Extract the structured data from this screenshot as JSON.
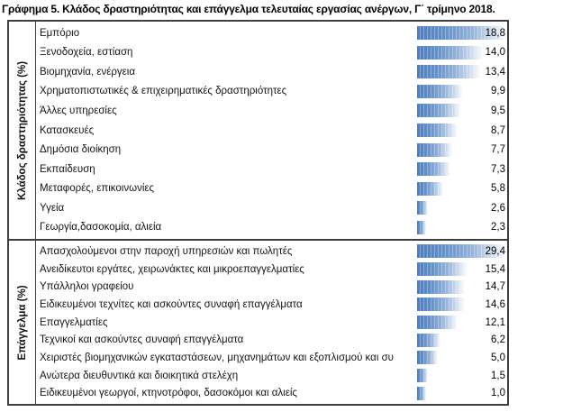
{
  "title": "Γράφημα 5. Κλάδος δραστηριότητας και επάγγελμα τελευταίας εργασίας ανέργων, Γ΄ τρίμηνο 2018.",
  "chart_data": {
    "type": "bar",
    "orientation": "horizontal",
    "value_suffix": "%",
    "bar_color": "#4d7dbf",
    "bar_gradient_end": "#ffffff",
    "bar_scaling": "databar-min10-max100",
    "legend": "none",
    "sections": [
      {
        "group_label": "Κλάδος δραστηριότητας (%)",
        "categories": [
          "Εμπόριο",
          "Ξενοδοχεία, εστίαση",
          "Βιομηχανία, ενέργεια",
          "Χρηματοπιστωτικές & επιχειρηματικές δραστηριότητες",
          "Άλλες υπηρεσίες",
          "Κατασκευές",
          "Δημόσια διοίκηση",
          "Εκπαίδευση",
          "Μεταφορές, επικοινωνίες",
          "Υγεία",
          "Γεωργία,δασοκομία, αλιεία"
        ],
        "values": [
          18.8,
          14.0,
          13.4,
          9.9,
          9.5,
          8.7,
          7.7,
          7.3,
          5.8,
          2.6,
          2.3
        ],
        "display_values": [
          "18,8",
          "14,0",
          "13,4",
          "9,9",
          "9,5",
          "8,7",
          "7,7",
          "7,3",
          "5,8",
          "2,6",
          "2,3"
        ]
      },
      {
        "group_label": "Επάγγελμα (%)",
        "categories": [
          "Απασχολούμενοι στην παροχή υπηρεσιών και πωλητές",
          "Ανειδίκευτοι εργάτες, χειρωνάκτες και μικροεπαγγελματίες",
          "Υπάλληλοι γραφείου",
          "Ειδικευμένοι τεχνίτες και ασκούντες συναφή επαγγέλματα",
          "Επαγγελματίες",
          "Τεχνικοί και ασκούντες συναφή επαγγέλματα",
          "Χειριστές βιομηχανικών εγκαταστάσεων, μηχανημάτων και εξοπλισμού και συ",
          "Ανώτερα διευθυντικά και διοικητικά στελέχη",
          "Ειδικευμένοι γεωργοί, κτηνοτρόφοι, δασοκόμοι και αλιείς"
        ],
        "values": [
          29.4,
          15.4,
          14.7,
          14.6,
          12.1,
          6.2,
          5.0,
          1.5,
          1.0
        ],
        "display_values": [
          "29,4",
          "15,4",
          "14,7",
          "14,6",
          "12,1",
          "6,2",
          "5,0",
          "1,5",
          "1,0"
        ]
      }
    ]
  }
}
